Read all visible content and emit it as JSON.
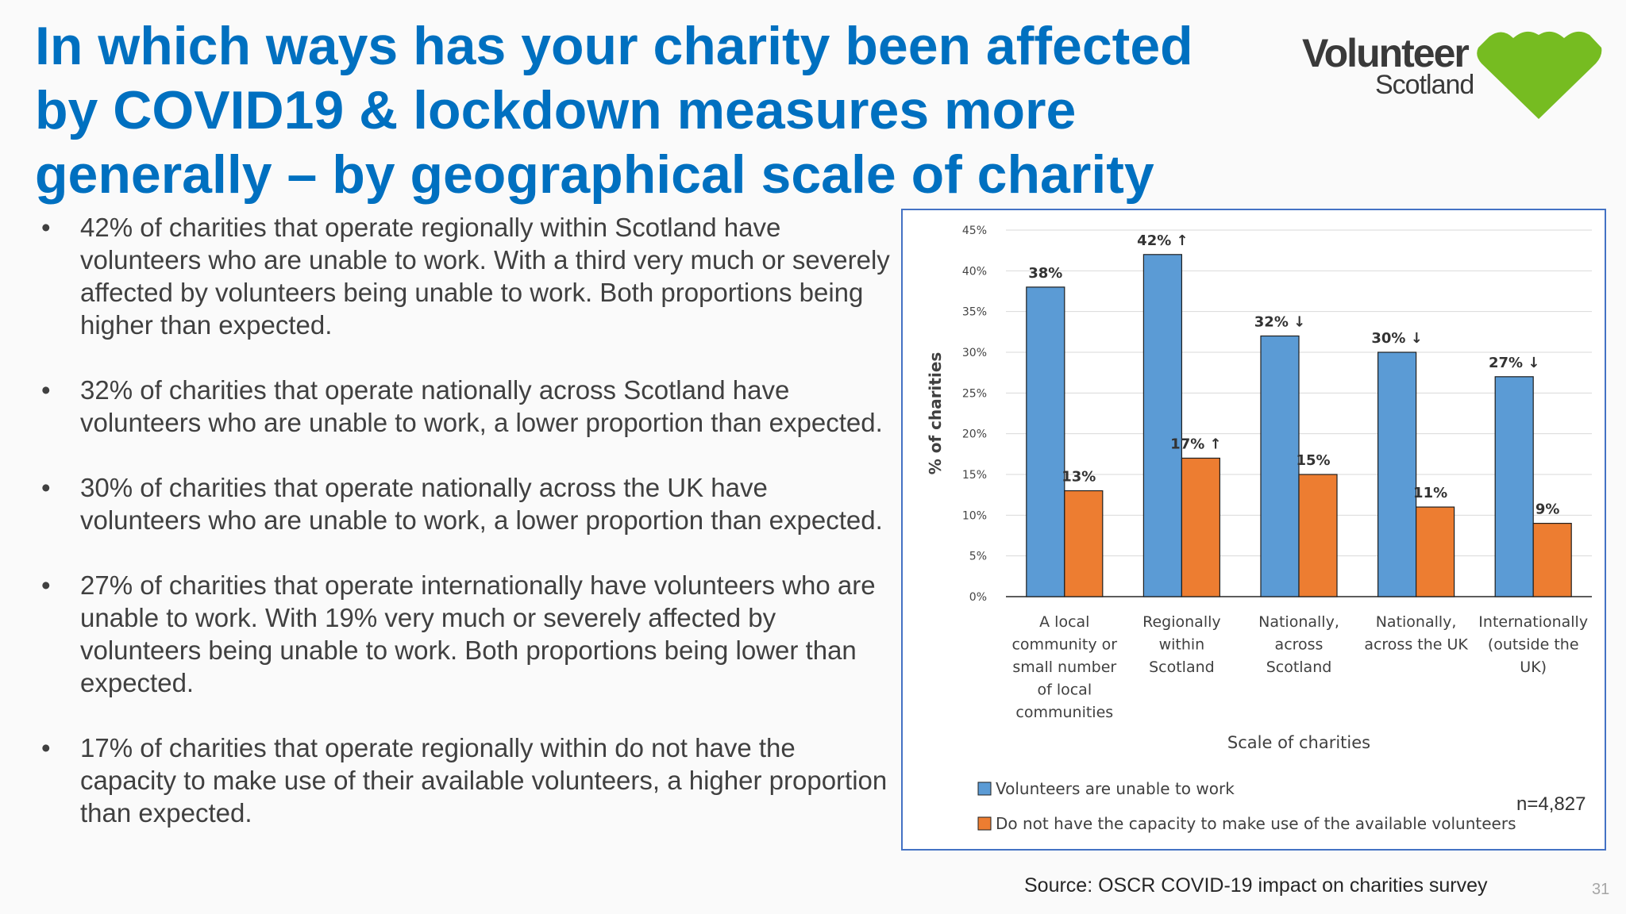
{
  "title_lines": [
    "In which ways has your charity been affected",
    "by COVID19 & lockdown measures more",
    "generally – by geographical scale of charity"
  ],
  "logo": {
    "word1": "Volunteer",
    "word2": "Scotland",
    "heart_color": "#76bc21",
    "text_color": "#3a3a3a"
  },
  "bullets": [
    "42% of charities that operate regionally within Scotland have volunteers who are unable to work. With a third very much or severely affected by volunteers being unable to work. Both proportions being higher than expected.",
    "32% of charities that operate nationally across Scotland have volunteers who are unable to work, a lower proportion than expected.",
    "30% of charities that operate nationally across the UK have volunteers who are unable to work, a lower proportion than expected.",
    "27% of charities that operate internationally have volunteers who are unable to work. With 19% very much or severely affected by volunteers being unable to work. Both proportions being lower than expected.",
    "17% of charities that operate regionally within do not have the capacity to make use of their available volunteers, a higher proportion than expected."
  ],
  "chart_data": {
    "type": "bar",
    "categories": [
      [
        "A local",
        "community or",
        "small number",
        "of local",
        "communities"
      ],
      [
        "Regionally",
        "within",
        "Scotland"
      ],
      [
        "Nationally,",
        "across",
        "Scotland"
      ],
      [
        "Nationally,",
        "across the UK"
      ],
      [
        "Internationally",
        "(outside the",
        "UK)"
      ]
    ],
    "series": [
      {
        "name": "Volunteers are unable to work",
        "color": "#5b9bd5",
        "values": [
          38,
          42,
          32,
          30,
          27
        ],
        "labels": [
          "38%",
          "42% ↑",
          "32% ↓",
          "30% ↓",
          "27% ↓"
        ]
      },
      {
        "name": "Do not have the capacity to make use of the available volunteers",
        "color": "#ed7d31",
        "values": [
          13,
          17,
          15,
          11,
          9
        ],
        "labels": [
          "13%",
          "17% ↑",
          "15%",
          "11%",
          "9%"
        ]
      }
    ],
    "xlabel": "Scale of charities",
    "ylabel": "% of charities",
    "ylim": [
      0,
      45
    ],
    "yticks": [
      0,
      5,
      10,
      15,
      20,
      25,
      30,
      35,
      40,
      45
    ],
    "ytick_suffix": "%",
    "grid": true,
    "legend_position": "bottom-left",
    "note": "n=4,827"
  },
  "source": "Source: OSCR COVID-19 impact on charities survey",
  "page_number": "31"
}
